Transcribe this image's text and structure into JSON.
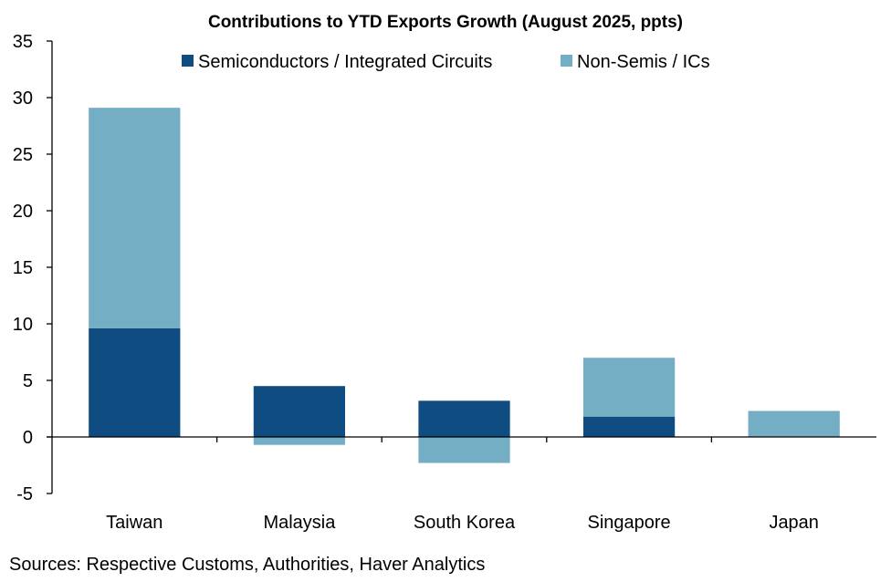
{
  "chart_data": {
    "type": "bar",
    "stacked": true,
    "title": "Contributions to YTD Exports Growth (August 2025, ppts)",
    "xlabel": "",
    "ylabel": "",
    "categories": [
      "Taiwan",
      "Malaysia",
      "South Korea",
      "Singapore",
      "Japan"
    ],
    "series": [
      {
        "name": "Semiconductors / Integrated Circuits",
        "color": "#0F4C81",
        "values": [
          9.6,
          4.5,
          3.2,
          1.8,
          0.0
        ]
      },
      {
        "name": "Non-Semis / ICs",
        "color": "#74AEC4",
        "values": [
          19.5,
          -0.7,
          -2.3,
          5.2,
          2.3
        ]
      }
    ],
    "ylim": [
      -5,
      35
    ],
    "yticks": [
      -5,
      0,
      5,
      10,
      15,
      20,
      25,
      30,
      35
    ],
    "grid": false,
    "legend_position": "top-center",
    "source": "Sources: Respective Customs, Authorities, Haver Analytics"
  }
}
